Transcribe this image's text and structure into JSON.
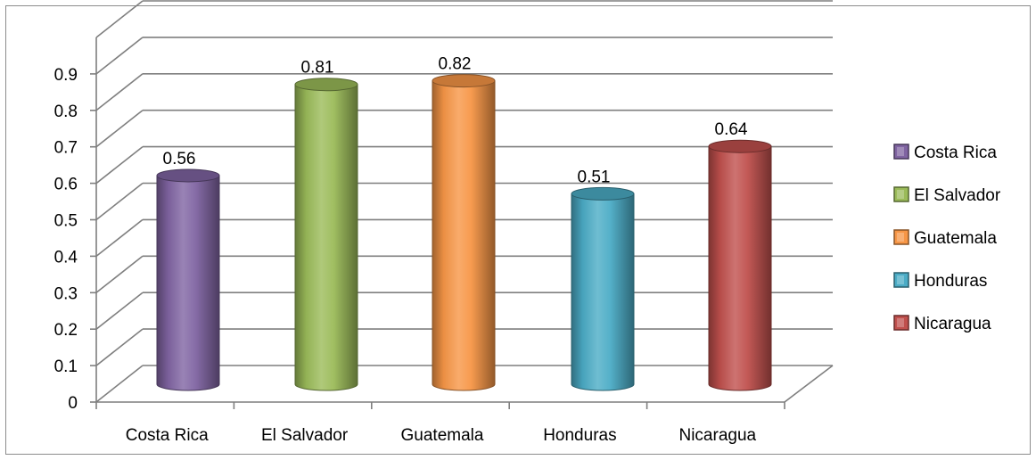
{
  "chart_data": {
    "type": "bar",
    "categories": [
      "Costa Rica",
      "El Salvador",
      "Guatemala",
      "Honduras",
      "Nicaragua"
    ],
    "values": [
      0.56,
      0.81,
      0.82,
      0.51,
      0.64
    ],
    "data_labels": [
      "0.56",
      "0.81",
      "0.82",
      "0.51",
      "0.64"
    ],
    "series": [
      {
        "name": "Costa Rica",
        "color": "#8064a2"
      },
      {
        "name": "El Salvador",
        "color": "#9bbb59"
      },
      {
        "name": "Guatemala",
        "color": "#f79646"
      },
      {
        "name": "Honduras",
        "color": "#4bacc6"
      },
      {
        "name": "Nicaragua",
        "color": "#c0504d"
      }
    ],
    "y_ticks": [
      "0",
      "0.1",
      "0.2",
      "0.3",
      "0.4",
      "0.5",
      "0.6",
      "0.7",
      "0.8",
      "0.9"
    ],
    "ylim": [
      0,
      0.9
    ],
    "grid": true,
    "style": "3d-cylinder",
    "legend_position": "right",
    "title": "",
    "xlabel": "",
    "ylabel": ""
  }
}
